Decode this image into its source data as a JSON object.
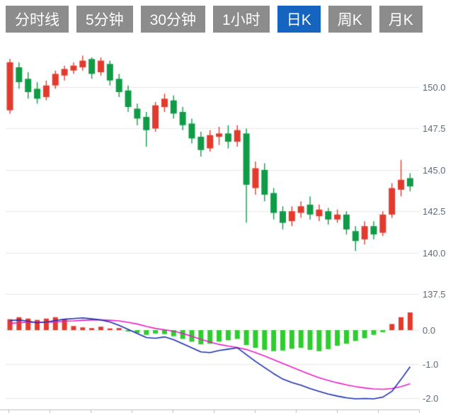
{
  "tabbar": {
    "active_bg": "#1565c0",
    "inactive_bg": "#8c8c8c",
    "text_color": "#ffffff",
    "tabs": [
      {
        "label": "分时线",
        "active": false
      },
      {
        "label": "5分钟",
        "active": false
      },
      {
        "label": "30分钟",
        "active": false
      },
      {
        "label": "1小时",
        "active": false
      },
      {
        "label": "日K",
        "active": true
      },
      {
        "label": "周K",
        "active": false
      },
      {
        "label": "月K",
        "active": false
      }
    ]
  },
  "chart_data": [
    {
      "type": "candlestick",
      "title": "",
      "xlabel": "",
      "ylabel": "",
      "grid": true,
      "ylim": [
        136.9,
        152.4
      ],
      "y_ticks": [
        "150.0",
        "147.5",
        "145.0",
        "142.5",
        "140.0",
        "137.5"
      ],
      "up_color": "#e23b2e",
      "down_color": "#109b47",
      "ohlc": [
        [
          148.6,
          151.7,
          148.4,
          151.5
        ],
        [
          151.2,
          151.5,
          149.9,
          150.3
        ],
        [
          150.5,
          150.9,
          149.3,
          149.7
        ],
        [
          149.9,
          150.3,
          149.0,
          149.3
        ],
        [
          149.4,
          150.4,
          149.2,
          150.1
        ],
        [
          150.1,
          151.0,
          149.9,
          150.8
        ],
        [
          150.7,
          151.3,
          150.4,
          151.1
        ],
        [
          151.0,
          151.5,
          150.8,
          151.3
        ],
        [
          151.2,
          151.9,
          151.0,
          151.6
        ],
        [
          151.7,
          151.8,
          150.5,
          150.8
        ],
        [
          150.9,
          151.8,
          150.7,
          151.6
        ],
        [
          151.4,
          151.6,
          150.1,
          150.4
        ],
        [
          150.5,
          150.8,
          149.4,
          149.7
        ],
        [
          149.8,
          150.1,
          148.5,
          148.8
        ],
        [
          148.7,
          149.0,
          147.7,
          148.1
        ],
        [
          148.2,
          148.5,
          146.4,
          147.4
        ],
        [
          147.5,
          149.1,
          147.3,
          148.9
        ],
        [
          148.8,
          149.6,
          148.5,
          149.3
        ],
        [
          149.2,
          149.5,
          148.1,
          148.4
        ],
        [
          148.5,
          148.8,
          147.4,
          147.7
        ],
        [
          147.8,
          148.1,
          146.6,
          146.9
        ],
        [
          147.0,
          147.3,
          145.8,
          146.2
        ],
        [
          146.3,
          147.4,
          146.1,
          147.1
        ],
        [
          147.0,
          147.6,
          146.5,
          147.2
        ],
        [
          147.2,
          147.7,
          146.3,
          146.7
        ],
        [
          146.7,
          147.7,
          146.4,
          147.4
        ],
        [
          147.2,
          147.5,
          141.8,
          144.1
        ],
        [
          143.9,
          145.5,
          143.5,
          145.1
        ],
        [
          145.0,
          145.4,
          143.1,
          143.5
        ],
        [
          143.6,
          143.9,
          142.0,
          142.4
        ],
        [
          142.5,
          142.8,
          141.4,
          141.8
        ],
        [
          141.9,
          142.8,
          141.6,
          142.5
        ],
        [
          142.4,
          143.1,
          142.1,
          142.8
        ],
        [
          142.9,
          143.4,
          142.0,
          142.3
        ],
        [
          142.2,
          142.9,
          141.9,
          142.6
        ],
        [
          142.5,
          142.7,
          141.7,
          142.0
        ],
        [
          142.0,
          142.6,
          141.8,
          142.3
        ],
        [
          142.3,
          142.5,
          141.1,
          141.4
        ],
        [
          141.3,
          141.6,
          140.1,
          140.7
        ],
        [
          140.8,
          141.9,
          140.5,
          141.6
        ],
        [
          141.6,
          141.9,
          140.8,
          141.1
        ],
        [
          141.2,
          142.5,
          141.0,
          142.3
        ],
        [
          142.3,
          144.2,
          142.1,
          143.9
        ],
        [
          143.8,
          145.6,
          143.4,
          144.4
        ],
        [
          144.5,
          144.8,
          143.7,
          144.0
        ]
      ]
    },
    {
      "type": "macd",
      "title": "",
      "grid": true,
      "ylim": [
        -2.2,
        0.55
      ],
      "y_ticks": [
        "0.0",
        "-1.0",
        "-2.0"
      ],
      "dif_color": "#1b2fae",
      "dea_color": "#ea1ec8",
      "hist_up_color": "#e23b2e",
      "hist_down_color": "#2ecc2e",
      "dif": [
        0.28,
        0.3,
        0.26,
        0.22,
        0.24,
        0.28,
        0.32,
        0.34,
        0.36,
        0.33,
        0.3,
        0.24,
        0.14,
        0.02,
        -0.1,
        -0.22,
        -0.24,
        -0.2,
        -0.28,
        -0.4,
        -0.52,
        -0.64,
        -0.66,
        -0.6,
        -0.56,
        -0.52,
        -0.72,
        -0.92,
        -1.1,
        -1.28,
        -1.44,
        -1.54,
        -1.62,
        -1.72,
        -1.8,
        -1.88,
        -1.94,
        -1.99,
        -2.02,
        -2.01,
        -2.02,
        -1.97,
        -1.8,
        -1.45,
        -1.08
      ],
      "dea": [
        0.2,
        0.22,
        0.23,
        0.23,
        0.23,
        0.24,
        0.26,
        0.27,
        0.29,
        0.3,
        0.3,
        0.29,
        0.27,
        0.23,
        0.18,
        0.11,
        0.05,
        0.01,
        -0.03,
        -0.1,
        -0.18,
        -0.27,
        -0.35,
        -0.42,
        -0.47,
        -0.51,
        -0.57,
        -0.66,
        -0.76,
        -0.87,
        -0.98,
        -1.09,
        -1.2,
        -1.3,
        -1.4,
        -1.48,
        -1.55,
        -1.61,
        -1.66,
        -1.7,
        -1.73,
        -1.74,
        -1.72,
        -1.66,
        -1.58
      ],
      "hist": [
        0.32,
        0.38,
        0.34,
        0.3,
        0.34,
        0.38,
        0.33,
        0.12,
        0.08,
        0.06,
        0.1,
        0.05,
        0.06,
        -0.04,
        -0.08,
        -0.14,
        -0.1,
        -0.12,
        -0.18,
        -0.26,
        -0.34,
        -0.42,
        -0.4,
        -0.34,
        -0.3,
        -0.26,
        -0.44,
        -0.52,
        -0.58,
        -0.62,
        -0.6,
        -0.55,
        -0.52,
        -0.58,
        -0.62,
        -0.56,
        -0.46,
        -0.4,
        -0.32,
        -0.24,
        -0.14,
        -0.06,
        0.18,
        0.38,
        0.52
      ]
    }
  ]
}
